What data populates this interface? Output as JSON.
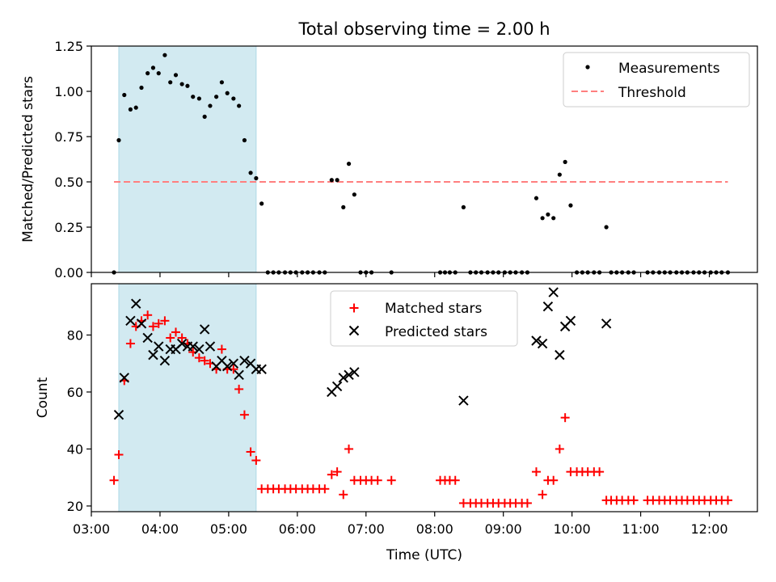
{
  "chart_data": {
    "type": "scatter",
    "title": "Total observing time = 2.00 h",
    "xlabel": "Time (UTC)",
    "x_range_hours": [
      3.0,
      12.7
    ],
    "x_ticks": [
      "03:00",
      "04:00",
      "05:00",
      "06:00",
      "07:00",
      "08:00",
      "09:00",
      "10:00",
      "11:00",
      "12:00"
    ],
    "x_tick_hours": [
      3,
      4,
      5,
      6,
      7,
      8,
      9,
      10,
      11,
      12
    ],
    "shaded_region_hours": [
      3.4,
      5.4
    ],
    "shade_color": "#add8e6",
    "top": {
      "ylabel": "Matched/Predicted stars",
      "ylim": [
        0,
        1.25
      ],
      "yticks": [
        "0.00",
        "0.25",
        "0.50",
        "0.75",
        "1.00",
        "1.25"
      ],
      "ytick_values": [
        0,
        0.25,
        0.5,
        0.75,
        1.0,
        1.25
      ],
      "legend_position": "top-right",
      "series": [
        {
          "name": "Measurements",
          "marker": "dot",
          "color": "#000000",
          "points": [
            [
              3.33,
              0
            ],
            [
              3.4,
              0.73
            ],
            [
              3.48,
              0.98
            ],
            [
              3.57,
              0.9
            ],
            [
              3.65,
              0.91
            ],
            [
              3.73,
              1.02
            ],
            [
              3.82,
              1.1
            ],
            [
              3.9,
              1.13
            ],
            [
              3.98,
              1.1
            ],
            [
              4.07,
              1.2
            ],
            [
              4.15,
              1.05
            ],
            [
              4.23,
              1.09
            ],
            [
              4.32,
              1.04
            ],
            [
              4.4,
              1.03
            ],
            [
              4.48,
              0.97
            ],
            [
              4.57,
              0.96
            ],
            [
              4.65,
              0.86
            ],
            [
              4.73,
              0.92
            ],
            [
              4.82,
              0.97
            ],
            [
              4.9,
              1.05
            ],
            [
              4.98,
              0.99
            ],
            [
              5.07,
              0.96
            ],
            [
              5.15,
              0.92
            ],
            [
              5.23,
              0.73
            ],
            [
              5.32,
              0.55
            ],
            [
              5.4,
              0.52
            ],
            [
              5.48,
              0.38
            ],
            [
              5.57,
              0
            ],
            [
              5.65,
              0
            ],
            [
              5.73,
              0
            ],
            [
              5.82,
              0
            ],
            [
              5.9,
              0
            ],
            [
              5.98,
              0
            ],
            [
              6.07,
              0
            ],
            [
              6.15,
              0
            ],
            [
              6.23,
              0
            ],
            [
              6.32,
              0
            ],
            [
              6.4,
              0
            ],
            [
              6.5,
              0.51
            ],
            [
              6.58,
              0.51
            ],
            [
              6.67,
              0.36
            ],
            [
              6.75,
              0.6
            ],
            [
              6.83,
              0.43
            ],
            [
              6.92,
              0
            ],
            [
              7.0,
              0
            ],
            [
              7.08,
              0
            ],
            [
              7.37,
              0
            ],
            [
              8.08,
              0
            ],
            [
              8.15,
              0
            ],
            [
              8.22,
              0
            ],
            [
              8.3,
              0
            ],
            [
              8.42,
              0.36
            ],
            [
              8.52,
              0
            ],
            [
              8.6,
              0
            ],
            [
              8.68,
              0
            ],
            [
              8.77,
              0
            ],
            [
              8.85,
              0
            ],
            [
              8.93,
              0
            ],
            [
              9.02,
              0
            ],
            [
              9.1,
              0
            ],
            [
              9.18,
              0
            ],
            [
              9.27,
              0
            ],
            [
              9.35,
              0
            ],
            [
              9.48,
              0.41
            ],
            [
              9.57,
              0.3
            ],
            [
              9.65,
              0.32
            ],
            [
              9.73,
              0.3
            ],
            [
              9.82,
              0.54
            ],
            [
              9.9,
              0.61
            ],
            [
              9.98,
              0.37
            ],
            [
              10.07,
              0
            ],
            [
              10.15,
              0
            ],
            [
              10.23,
              0
            ],
            [
              10.32,
              0
            ],
            [
              10.4,
              0
            ],
            [
              10.5,
              0.25
            ],
            [
              10.57,
              0
            ],
            [
              10.65,
              0
            ],
            [
              10.73,
              0
            ],
            [
              10.82,
              0
            ],
            [
              10.9,
              0
            ],
            [
              11.1,
              0
            ],
            [
              11.18,
              0
            ],
            [
              11.27,
              0
            ],
            [
              11.35,
              0
            ],
            [
              11.43,
              0
            ],
            [
              11.52,
              0
            ],
            [
              11.6,
              0
            ],
            [
              11.68,
              0
            ],
            [
              11.77,
              0
            ],
            [
              11.85,
              0
            ],
            [
              11.93,
              0
            ],
            [
              12.02,
              0
            ],
            [
              12.1,
              0
            ],
            [
              12.18,
              0
            ],
            [
              12.27,
              0
            ]
          ]
        },
        {
          "name": "Threshold",
          "line": "dashed",
          "color": "#ff7f7f",
          "points": [
            [
              3.33,
              0.5
            ],
            [
              12.27,
              0.5
            ]
          ]
        }
      ]
    },
    "bottom": {
      "ylabel": "Count",
      "ylim": [
        18,
        98
      ],
      "yticks": [
        "20",
        "40",
        "60",
        "80"
      ],
      "ytick_values": [
        20,
        40,
        60,
        80
      ],
      "legend_position": "top-center",
      "series": [
        {
          "name": "Matched stars",
          "marker": "plus",
          "color": "#ff0000",
          "points": [
            [
              3.33,
              29
            ],
            [
              3.4,
              38
            ],
            [
              3.48,
              64
            ],
            [
              3.57,
              77
            ],
            [
              3.65,
              83
            ],
            [
              3.73,
              85
            ],
            [
              3.82,
              87
            ],
            [
              3.9,
              83
            ],
            [
              3.98,
              84
            ],
            [
              4.07,
              85
            ],
            [
              4.15,
              79
            ],
            [
              4.23,
              81
            ],
            [
              4.32,
              79
            ],
            [
              4.4,
              77
            ],
            [
              4.48,
              74
            ],
            [
              4.57,
              72
            ],
            [
              4.65,
              71
            ],
            [
              4.73,
              70
            ],
            [
              4.82,
              68
            ],
            [
              4.9,
              75
            ],
            [
              4.98,
              68
            ],
            [
              5.07,
              68
            ],
            [
              5.15,
              61
            ],
            [
              5.23,
              52
            ],
            [
              5.32,
              39
            ],
            [
              5.4,
              36
            ],
            [
              5.48,
              26
            ],
            [
              5.57,
              26
            ],
            [
              5.65,
              26
            ],
            [
              5.73,
              26
            ],
            [
              5.82,
              26
            ],
            [
              5.9,
              26
            ],
            [
              5.98,
              26
            ],
            [
              6.07,
              26
            ],
            [
              6.15,
              26
            ],
            [
              6.23,
              26
            ],
            [
              6.32,
              26
            ],
            [
              6.4,
              26
            ],
            [
              6.5,
              31
            ],
            [
              6.58,
              32
            ],
            [
              6.67,
              24
            ],
            [
              6.75,
              40
            ],
            [
              6.83,
              29
            ],
            [
              6.92,
              29
            ],
            [
              7.0,
              29
            ],
            [
              7.08,
              29
            ],
            [
              7.17,
              29
            ],
            [
              7.37,
              29
            ],
            [
              8.08,
              29
            ],
            [
              8.15,
              29
            ],
            [
              8.22,
              29
            ],
            [
              8.3,
              29
            ],
            [
              8.42,
              21
            ],
            [
              8.52,
              21
            ],
            [
              8.6,
              21
            ],
            [
              8.68,
              21
            ],
            [
              8.77,
              21
            ],
            [
              8.85,
              21
            ],
            [
              8.93,
              21
            ],
            [
              9.02,
              21
            ],
            [
              9.1,
              21
            ],
            [
              9.18,
              21
            ],
            [
              9.27,
              21
            ],
            [
              9.35,
              21
            ],
            [
              9.48,
              32
            ],
            [
              9.57,
              24
            ],
            [
              9.65,
              29
            ],
            [
              9.73,
              29
            ],
            [
              9.82,
              40
            ],
            [
              9.9,
              51
            ],
            [
              9.98,
              32
            ],
            [
              10.07,
              32
            ],
            [
              10.15,
              32
            ],
            [
              10.23,
              32
            ],
            [
              10.32,
              32
            ],
            [
              10.4,
              32
            ],
            [
              10.5,
              22
            ],
            [
              10.57,
              22
            ],
            [
              10.65,
              22
            ],
            [
              10.73,
              22
            ],
            [
              10.82,
              22
            ],
            [
              10.9,
              22
            ],
            [
              11.1,
              22
            ],
            [
              11.18,
              22
            ],
            [
              11.27,
              22
            ],
            [
              11.35,
              22
            ],
            [
              11.43,
              22
            ],
            [
              11.52,
              22
            ],
            [
              11.6,
              22
            ],
            [
              11.68,
              22
            ],
            [
              11.77,
              22
            ],
            [
              11.85,
              22
            ],
            [
              11.93,
              22
            ],
            [
              12.02,
              22
            ],
            [
              12.1,
              22
            ],
            [
              12.18,
              22
            ],
            [
              12.27,
              22
            ]
          ]
        },
        {
          "name": "Predicted stars",
          "marker": "x",
          "color": "#000000",
          "points": [
            [
              3.4,
              52
            ],
            [
              3.48,
              65
            ],
            [
              3.57,
              85
            ],
            [
              3.65,
              91
            ],
            [
              3.73,
              84
            ],
            [
              3.82,
              79
            ],
            [
              3.9,
              73
            ],
            [
              3.98,
              76
            ],
            [
              4.07,
              71
            ],
            [
              4.15,
              75
            ],
            [
              4.23,
              75
            ],
            [
              4.32,
              77
            ],
            [
              4.4,
              76
            ],
            [
              4.48,
              76
            ],
            [
              4.57,
              75
            ],
            [
              4.65,
              82
            ],
            [
              4.73,
              76
            ],
            [
              4.82,
              69
            ],
            [
              4.9,
              71
            ],
            [
              4.98,
              69
            ],
            [
              5.07,
              70
            ],
            [
              5.15,
              66
            ],
            [
              5.23,
              71
            ],
            [
              5.32,
              70
            ],
            [
              5.4,
              68
            ],
            [
              5.48,
              68
            ],
            [
              6.5,
              60
            ],
            [
              6.58,
              62
            ],
            [
              6.67,
              65
            ],
            [
              6.75,
              66
            ],
            [
              6.83,
              67
            ],
            [
              8.42,
              57
            ],
            [
              9.48,
              78
            ],
            [
              9.57,
              77
            ],
            [
              9.65,
              90
            ],
            [
              9.73,
              95
            ],
            [
              9.82,
              73
            ],
            [
              9.9,
              83
            ],
            [
              9.98,
              85
            ],
            [
              10.5,
              84
            ]
          ]
        }
      ]
    }
  }
}
